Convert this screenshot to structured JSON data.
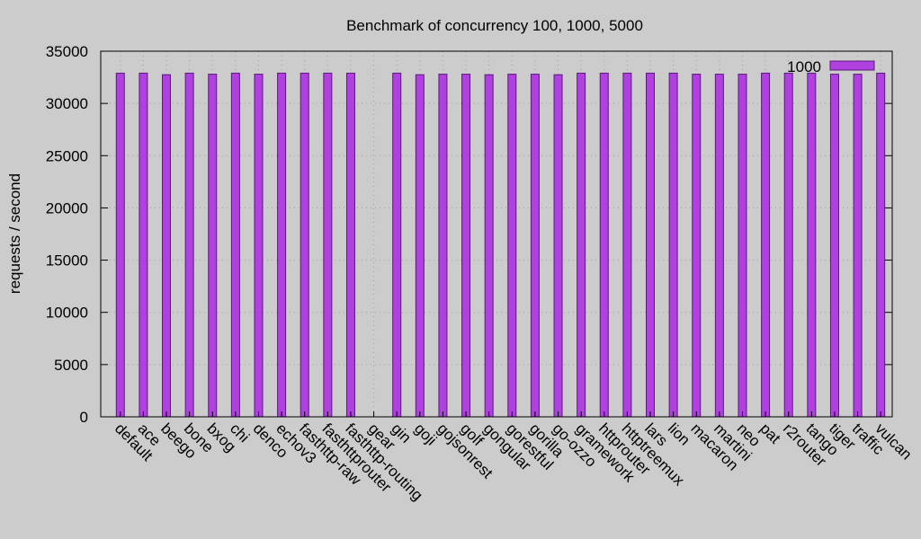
{
  "chart_data": {
    "type": "bar",
    "title": "Benchmark of concurrency 100, 1000, 5000",
    "ylabel": "requests / second",
    "xlabel": "",
    "ylim": [
      0,
      35000
    ],
    "yticks": [
      0,
      5000,
      10000,
      15000,
      20000,
      25000,
      30000,
      35000
    ],
    "grid": true,
    "legend_position": "top-right",
    "bar_color": "#b040e0",
    "categories": [
      "default",
      "ace",
      "beego",
      "bone",
      "bxog",
      "chi",
      "denco",
      "echov3",
      "fasthttp-raw",
      "fasthttprouter",
      "fasthttp-routing",
      "gear",
      "gin",
      "goji",
      "gojsonrest",
      "golf",
      "gongular",
      "gorestful",
      "gorilla",
      "go-ozzo",
      "gramework",
      "httprouter",
      "httptreemux",
      "lars",
      "lion",
      "macaron",
      "martini",
      "neo",
      "pat",
      "r2router",
      "tango",
      "tiger",
      "traffic",
      "vulcan"
    ],
    "series": [
      {
        "name": "1000",
        "values": [
          32900,
          32900,
          32750,
          32900,
          32800,
          32900,
          32800,
          32900,
          32900,
          32900,
          32900,
          0,
          32900,
          32750,
          32800,
          32800,
          32750,
          32800,
          32800,
          32750,
          32900,
          32900,
          32900,
          32900,
          32900,
          32800,
          32800,
          32800,
          32900,
          32900,
          32900,
          32800,
          32800,
          32900
        ]
      }
    ]
  }
}
